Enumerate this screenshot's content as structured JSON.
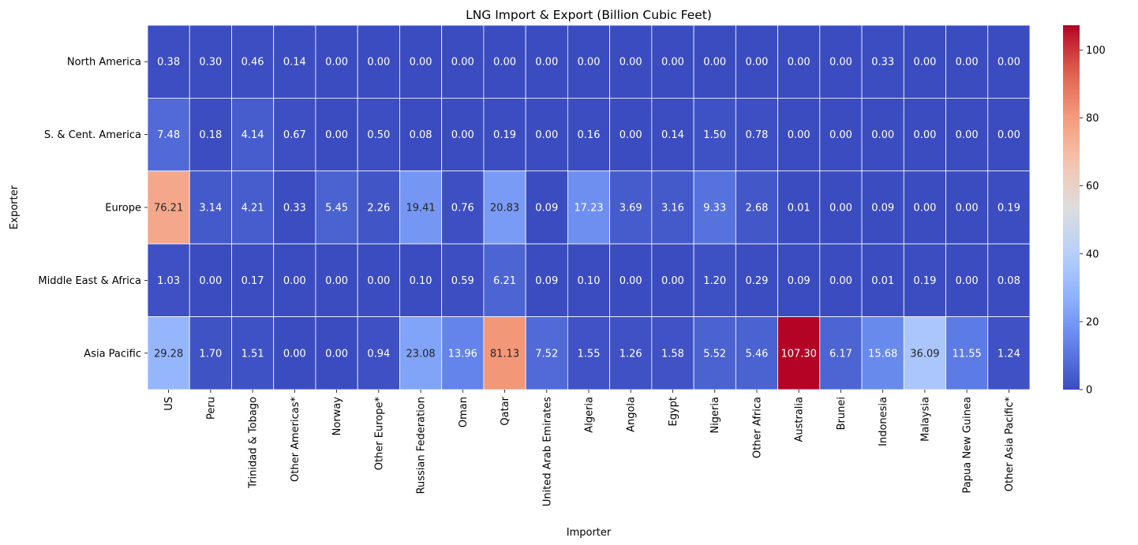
{
  "chart_data": {
    "type": "heatmap",
    "title": "LNG Import & Export (Billion Cubic Feet)",
    "xlabel": "Importer",
    "ylabel": "Exporter",
    "colormap": "coolwarm",
    "value_range": [
      0,
      107.3
    ],
    "value_format": "2 decimals",
    "rows": [
      "North America",
      "S. & Cent. America",
      "Europe",
      "Middle East & Africa",
      "Asia Pacific"
    ],
    "columns": [
      "US",
      "Peru",
      "Trinidad & Tobago",
      "Other Americas*",
      "Norway",
      "Other Europe*",
      "Russian Federation",
      "Oman",
      "Qatar",
      "United Arab Emirates",
      "Algeria",
      "Angola",
      "Egypt",
      "Nigeria",
      "Other Africa",
      "Australia",
      "Brunei",
      "Indonesia",
      "Malaysia",
      "Papua New Guinea",
      "Other Asia Pacific*"
    ],
    "values": [
      [
        0.38,
        0.3,
        0.46,
        0.14,
        0.0,
        0.0,
        0.0,
        0.0,
        0.0,
        0.0,
        0.0,
        0.0,
        0.0,
        0.0,
        0.0,
        0.0,
        0.0,
        0.33,
        0.0,
        0.0,
        0.0
      ],
      [
        7.48,
        0.18,
        4.14,
        0.67,
        0.0,
        0.5,
        0.08,
        0.0,
        0.19,
        0.0,
        0.16,
        0.0,
        0.14,
        1.5,
        0.78,
        0.0,
        0.0,
        0.0,
        0.0,
        0.0,
        0.0
      ],
      [
        76.21,
        3.14,
        4.21,
        0.33,
        5.45,
        2.26,
        19.41,
        0.76,
        20.83,
        0.09,
        17.23,
        3.69,
        3.16,
        9.33,
        2.68,
        0.01,
        0.0,
        0.09,
        0.0,
        0.0,
        0.19
      ],
      [
        1.03,
        0.0,
        0.17,
        0.0,
        0.0,
        0.0,
        0.1,
        0.59,
        6.21,
        0.09,
        0.1,
        0.0,
        0.0,
        1.2,
        0.29,
        0.09,
        0.0,
        0.01,
        0.19,
        0.0,
        0.08
      ],
      [
        29.28,
        1.7,
        1.51,
        0.0,
        0.0,
        0.94,
        23.08,
        13.96,
        81.13,
        7.52,
        1.55,
        1.26,
        1.58,
        5.52,
        5.46,
        107.3,
        6.17,
        15.68,
        36.09,
        11.55,
        1.24
      ]
    ],
    "colorbar": {
      "ticks": [
        "0",
        "20",
        "40",
        "60",
        "80",
        "100"
      ]
    },
    "grid": false
  }
}
